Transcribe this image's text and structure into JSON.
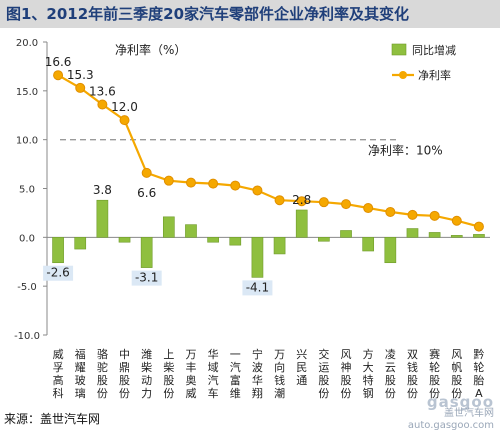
{
  "title": "图1、2012年前三季度20家汽车零部件企业净利率及其变化",
  "source_label": "来源：盖世汽车网",
  "watermark": {
    "logo": "gasgoo",
    "line1": "盖世汽车网",
    "line2": "auto.gasgoo.com"
  },
  "chart_data": {
    "type": "bar",
    "categories": [
      "威孚高科",
      "福耀玻璃",
      "骆驼股份",
      "中鼎股份",
      "潍柴动力",
      "上柴股份",
      "万丰奥威",
      "华域汽车",
      "一汽富维",
      "宁波华翔",
      "万向钱潮",
      "兴民通",
      "交运股份",
      "风神股份",
      "方大特钢",
      "凌云股份",
      "双钱股份",
      "赛轮股份",
      "风帆股份",
      "黔轮胎A"
    ],
    "series": [
      {
        "name": "同比增减",
        "type": "bar",
        "color": "#8fbf3f",
        "values": [
          -2.6,
          -1.2,
          3.8,
          -0.5,
          -3.1,
          2.1,
          1.3,
          -0.5,
          -0.8,
          -4.1,
          -1.7,
          2.8,
          -0.4,
          0.7,
          -1.4,
          -2.6,
          0.9,
          0.5,
          0.2,
          0.3
        ]
      },
      {
        "name": "净利率",
        "type": "line",
        "color": "#f5a800",
        "values": [
          16.6,
          15.3,
          13.6,
          12.0,
          6.6,
          5.8,
          5.6,
          5.5,
          5.3,
          4.8,
          3.8,
          3.7,
          3.6,
          3.4,
          3.0,
          2.6,
          2.3,
          2.2,
          1.7,
          1.1
        ]
      }
    ],
    "data_labels": [
      {
        "series": "净利率",
        "index": 0,
        "text": "16.6"
      },
      {
        "series": "净利率",
        "index": 1,
        "text": "15.3"
      },
      {
        "series": "净利率",
        "index": 2,
        "text": "13.6"
      },
      {
        "series": "净利率",
        "index": 3,
        "text": "12.0"
      },
      {
        "series": "净利率",
        "index": 4,
        "text": "6.6"
      },
      {
        "series": "同比增减",
        "index": 2,
        "text": "3.8"
      },
      {
        "series": "同比增减",
        "index": 11,
        "text": "2.8"
      },
      {
        "series": "同比增减",
        "index": 0,
        "text": "-2.6"
      },
      {
        "series": "同比增减",
        "index": 4,
        "text": "-3.1"
      },
      {
        "series": "同比增减",
        "index": 9,
        "text": "-4.1"
      }
    ],
    "ylim": [
      -10,
      20
    ],
    "yticks": [
      "20.0",
      "15.0",
      "10.0",
      "5.0",
      "0.0",
      "-5.0",
      "-10.0"
    ],
    "ytick_values": [
      20,
      15,
      10,
      5,
      0,
      -5,
      -10
    ],
    "ylabel_text": "净利率（%）",
    "reference_line": {
      "value": 10,
      "label": "净利率：10%"
    },
    "legend": {
      "position": "top-right"
    },
    "grid": false
  }
}
